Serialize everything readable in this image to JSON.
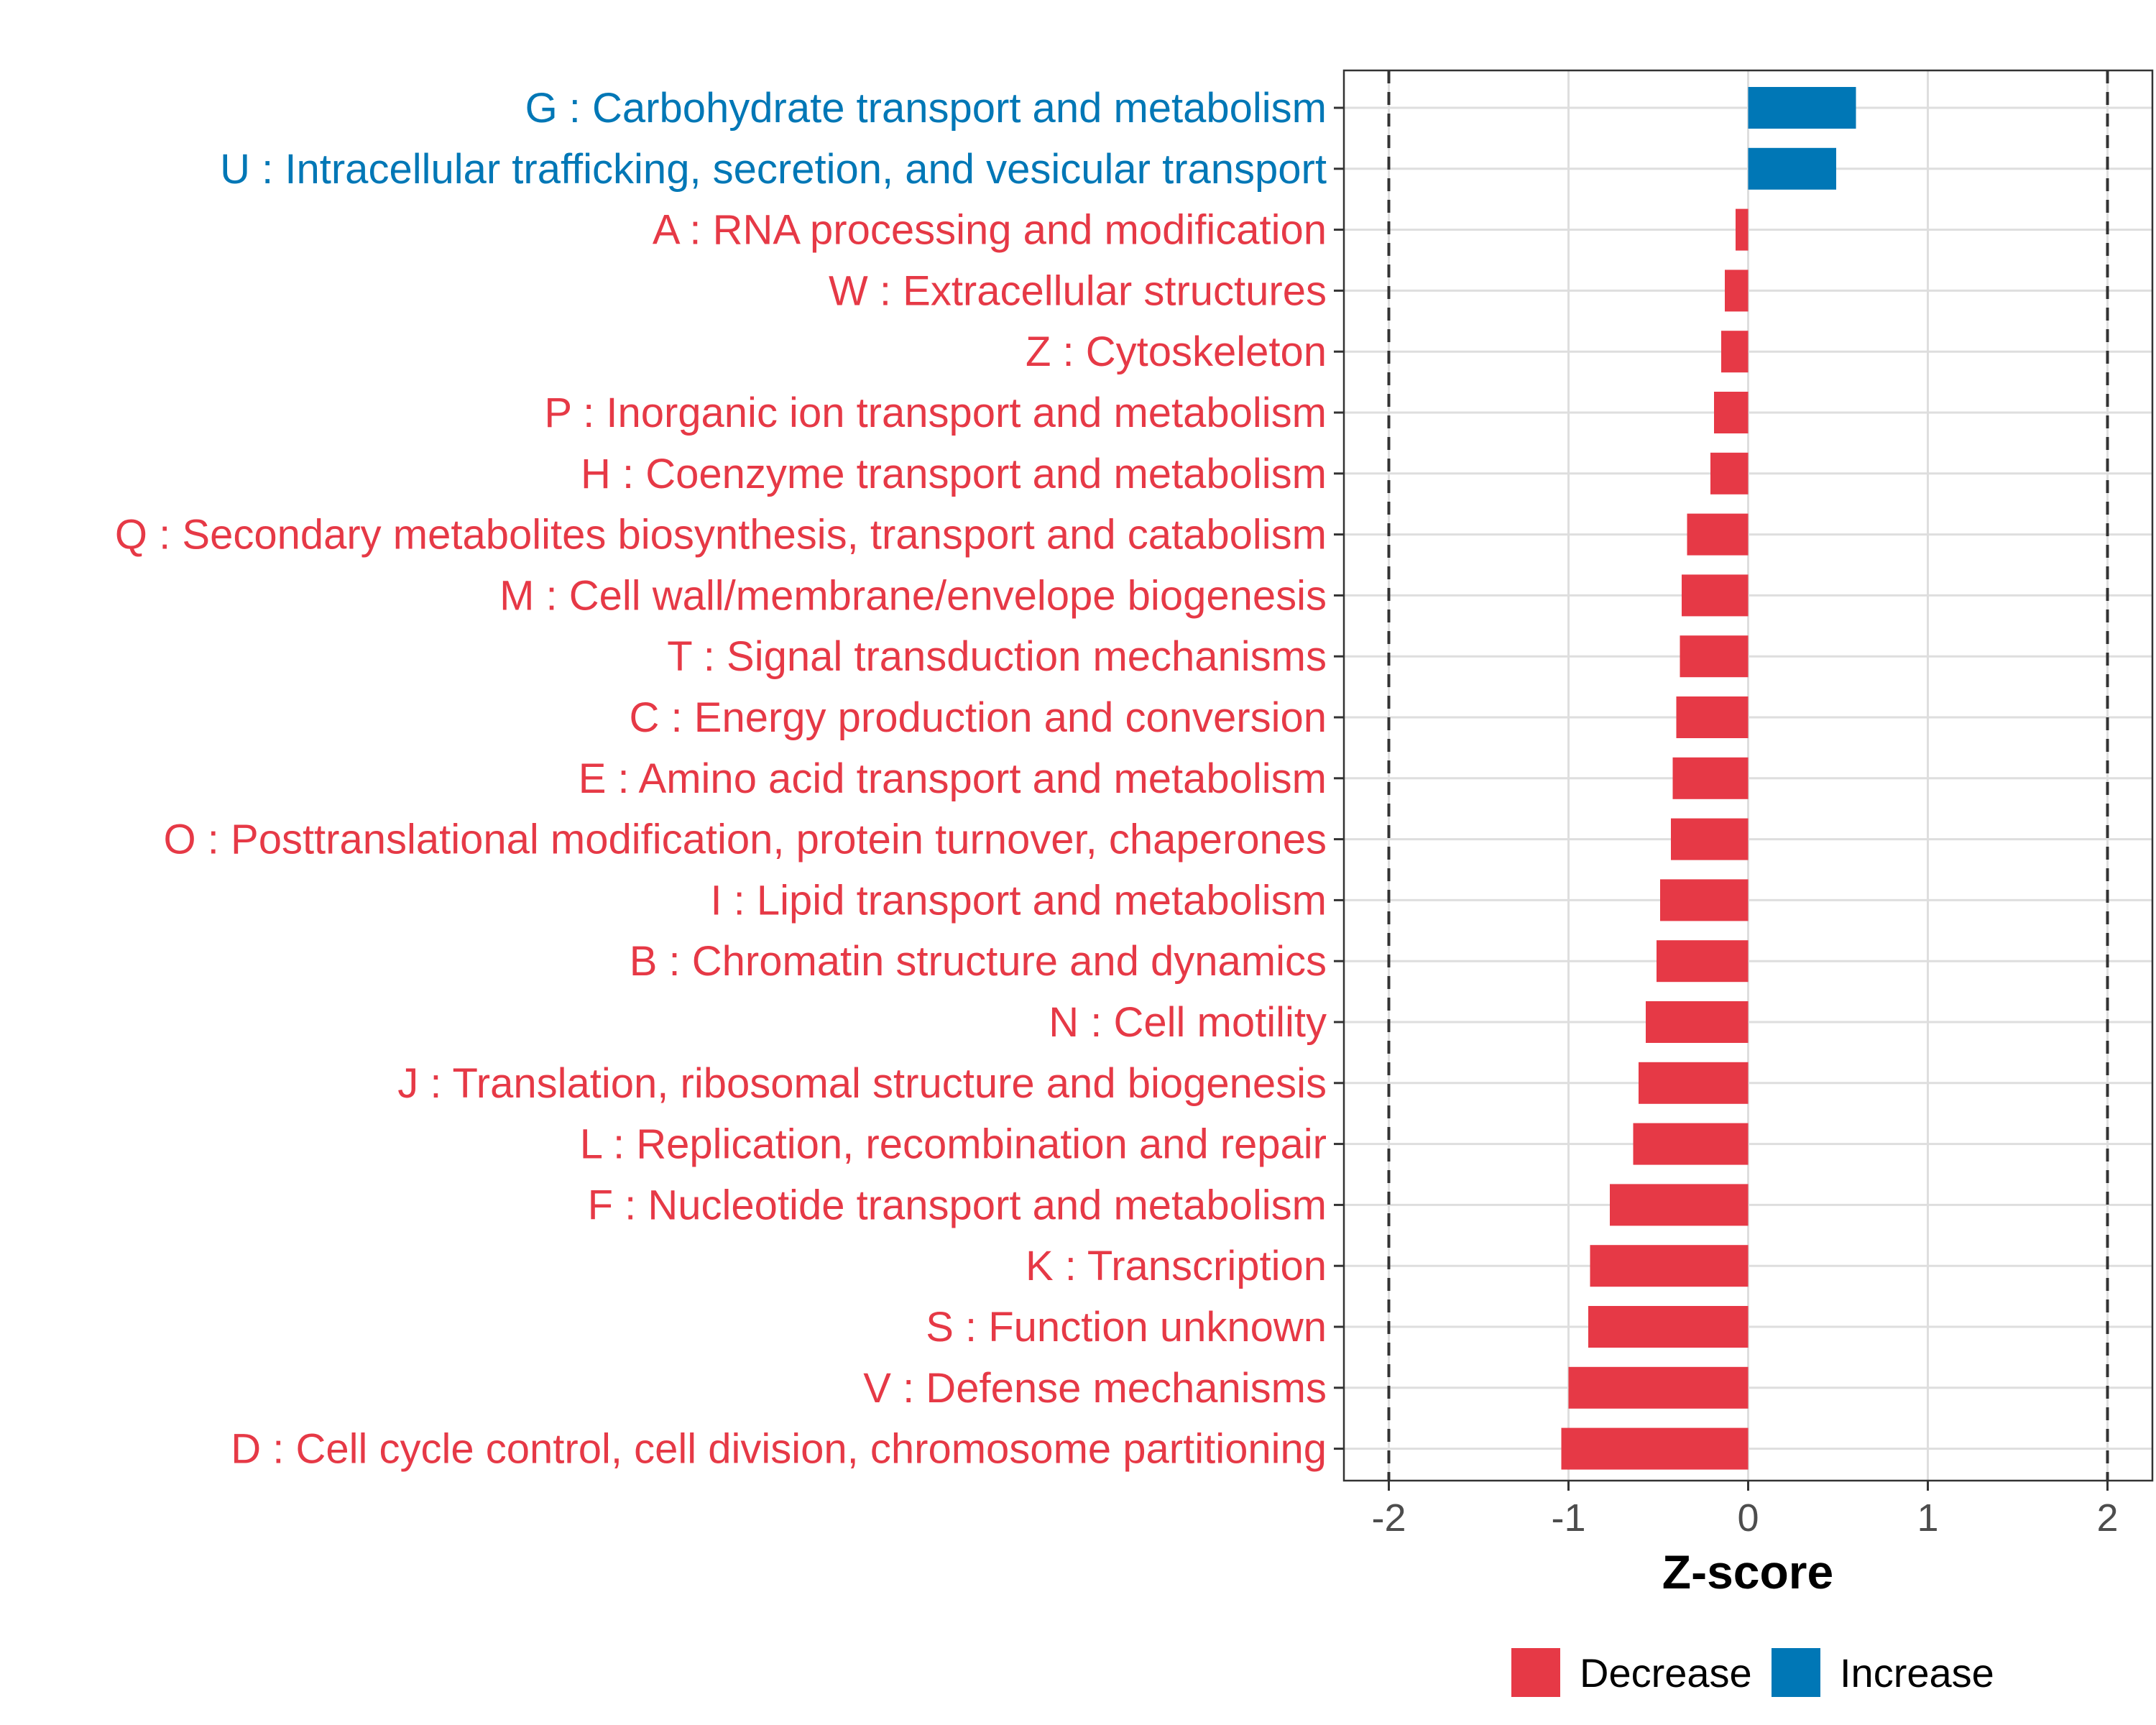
{
  "chart_data": {
    "type": "bar",
    "orientation": "horizontal",
    "title": "",
    "xlabel": "Z-score",
    "ylabel": "",
    "xlim": [
      -2.25,
      2.25
    ],
    "xticks": [
      -2,
      -1,
      0,
      1,
      2
    ],
    "xtick_labels": [
      "-2",
      "-1",
      "0",
      "1",
      "2"
    ],
    "reference_lines": [
      -2,
      2
    ],
    "grid": true,
    "legend_position": "bottom",
    "legend": [
      {
        "name": "Decrease",
        "color": "#E63946"
      },
      {
        "name": "Increase",
        "color": "#0077B6"
      }
    ],
    "categories": [
      "G : Carbohydrate transport and metabolism",
      "U : Intracellular trafficking, secretion, and vesicular transport",
      "A : RNA processing and modification",
      "W : Extracellular structures",
      "Z : Cytoskeleton",
      "P : Inorganic ion transport and metabolism",
      "H : Coenzyme transport and metabolism",
      "Q : Secondary metabolites biosynthesis, transport and catabolism",
      "M : Cell wall/membrane/envelope biogenesis",
      "T : Signal transduction mechanisms",
      "C : Energy production and conversion",
      "E : Amino acid transport and metabolism",
      "O : Posttranslational modification, protein turnover, chaperones",
      "I : Lipid transport and metabolism",
      "B : Chromatin structure and dynamics",
      "N : Cell motility",
      "J : Translation, ribosomal structure and biogenesis",
      "L : Replication, recombination and repair",
      "F : Nucleotide transport and metabolism",
      "K : Transcription",
      "S : Function unknown",
      "V : Defense mechanisms",
      "D : Cell cycle control, cell division, chromosome partitioning"
    ],
    "values": [
      0.6,
      0.49,
      -0.07,
      -0.13,
      -0.15,
      -0.19,
      -0.21,
      -0.34,
      -0.37,
      -0.38,
      -0.4,
      -0.42,
      -0.43,
      -0.49,
      -0.51,
      -0.57,
      -0.61,
      -0.64,
      -0.77,
      -0.88,
      -0.89,
      -1.0,
      -1.04
    ],
    "groups": [
      "Increase",
      "Increase",
      "Decrease",
      "Decrease",
      "Decrease",
      "Decrease",
      "Decrease",
      "Decrease",
      "Decrease",
      "Decrease",
      "Decrease",
      "Decrease",
      "Decrease",
      "Decrease",
      "Decrease",
      "Decrease",
      "Decrease",
      "Decrease",
      "Decrease",
      "Decrease",
      "Decrease",
      "Decrease",
      "Decrease"
    ]
  }
}
